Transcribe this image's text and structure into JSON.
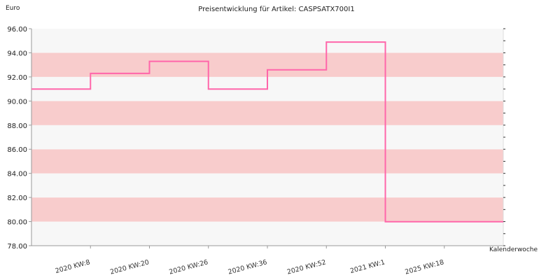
{
  "chart_data": {
    "type": "line",
    "step": true,
    "title": "Preisentwicklung für Artikel: CASPSATX700I1",
    "ylabel": "Euro",
    "xlabel": "Kalenderwoche",
    "ylim": [
      78,
      96
    ],
    "ytick_labels": [
      "78.00",
      "80.00",
      "82.00",
      "84.00",
      "86.00",
      "88.00",
      "90.00",
      "92.00",
      "94.00",
      "96.00"
    ],
    "categories": [
      "2020 KW:8",
      "2020 KW:20",
      "2020 KW:26",
      "2020 KW:36",
      "2020 KW:52",
      "2021 KW:1",
      "2025 KW:18"
    ],
    "series": [
      {
        "values": [
          90.99,
          92.29,
          93.29,
          90.99,
          92.59,
          94.89,
          79.99
        ]
      }
    ],
    "grid": true,
    "colors": {
      "line": "#ff66aa",
      "band_dark": "#f8cccc",
      "band_light": "#f7f7f7",
      "axis": "#999999"
    }
  }
}
